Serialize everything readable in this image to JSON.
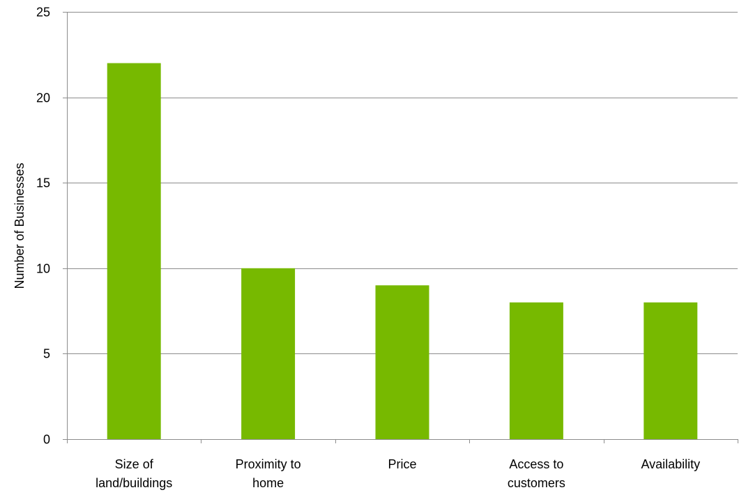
{
  "chart_data": {
    "type": "bar",
    "title": "",
    "xlabel": "",
    "ylabel": "Number of Businesses",
    "categories": [
      [
        "Size of",
        "land/buildings"
      ],
      [
        "Proximity to",
        "home"
      ],
      [
        "Price"
      ],
      [
        "Access to",
        "customers"
      ],
      [
        "Availability"
      ]
    ],
    "values": [
      22,
      10,
      9,
      8,
      8
    ],
    "ylim": [
      0,
      25
    ],
    "yticks": [
      0,
      5,
      10,
      15,
      20,
      25
    ],
    "grid": true,
    "legend": "none",
    "bar_color": "#77b900"
  }
}
